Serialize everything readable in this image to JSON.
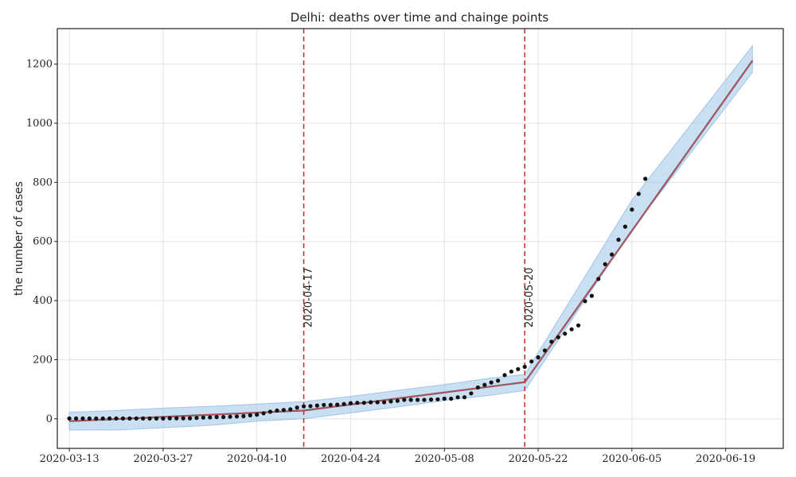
{
  "chart_data": {
    "type": "line",
    "title": "Delhi: deaths over time and chainge points",
    "xlabel": "",
    "ylabel": "the number of cases",
    "x_axis": {
      "type": "date",
      "range": [
        "2020-03-13",
        "2020-06-24"
      ],
      "tick_labels": [
        "2020-03-13",
        "2020-03-27",
        "2020-04-10",
        "2020-04-24",
        "2020-05-08",
        "2020-05-22",
        "2020-06-05",
        "2020-06-19"
      ]
    },
    "y_axis": {
      "range": [
        -100,
        1320
      ],
      "ticks": [
        0,
        200,
        400,
        600,
        800,
        1000,
        1200
      ]
    },
    "grid": true,
    "colors": {
      "observed": "#111111",
      "trend": "#c0504d",
      "forecast": "#2e5d8e",
      "band": "#9fc5e8",
      "changepoint": "#c0392b"
    },
    "changepoints": [
      {
        "date": "2020-04-17",
        "label": "2020-04-17"
      },
      {
        "date": "2020-05-20",
        "label": "2020-05-20"
      }
    ],
    "series": [
      {
        "kind": "observed",
        "points": [
          [
            "2020-03-13",
            1
          ],
          [
            "2020-03-14",
            1
          ],
          [
            "2020-03-15",
            1
          ],
          [
            "2020-03-16",
            1
          ],
          [
            "2020-03-17",
            1
          ],
          [
            "2020-03-18",
            1
          ],
          [
            "2020-03-19",
            1
          ],
          [
            "2020-03-20",
            1
          ],
          [
            "2020-03-21",
            1
          ],
          [
            "2020-03-22",
            1
          ],
          [
            "2020-03-23",
            1
          ],
          [
            "2020-03-24",
            1
          ],
          [
            "2020-03-25",
            1
          ],
          [
            "2020-03-26",
            1
          ],
          [
            "2020-03-27",
            1
          ],
          [
            "2020-03-28",
            2
          ],
          [
            "2020-03-29",
            2
          ],
          [
            "2020-03-30",
            2
          ],
          [
            "2020-03-31",
            2
          ],
          [
            "2020-04-01",
            3
          ],
          [
            "2020-04-02",
            4
          ],
          [
            "2020-04-03",
            5
          ],
          [
            "2020-04-04",
            6
          ],
          [
            "2020-04-05",
            6
          ],
          [
            "2020-04-06",
            7
          ],
          [
            "2020-04-07",
            8
          ],
          [
            "2020-04-08",
            9
          ],
          [
            "2020-04-09",
            12
          ],
          [
            "2020-04-10",
            14
          ],
          [
            "2020-04-11",
            19
          ],
          [
            "2020-04-12",
            24
          ],
          [
            "2020-04-13",
            28
          ],
          [
            "2020-04-14",
            30
          ],
          [
            "2020-04-15",
            32
          ],
          [
            "2020-04-16",
            38
          ],
          [
            "2020-04-17",
            42
          ],
          [
            "2020-04-18",
            43
          ],
          [
            "2020-04-19",
            45
          ],
          [
            "2020-04-20",
            47
          ],
          [
            "2020-04-21",
            47
          ],
          [
            "2020-04-22",
            48
          ],
          [
            "2020-04-23",
            50
          ],
          [
            "2020-04-24",
            53
          ],
          [
            "2020-04-25",
            54
          ],
          [
            "2020-04-26",
            54
          ],
          [
            "2020-04-27",
            56
          ],
          [
            "2020-04-28",
            56
          ],
          [
            "2020-04-29",
            56
          ],
          [
            "2020-04-30",
            59
          ],
          [
            "2020-05-01",
            61
          ],
          [
            "2020-05-02",
            64
          ],
          [
            "2020-05-03",
            64
          ],
          [
            "2020-05-04",
            64
          ],
          [
            "2020-05-05",
            64
          ],
          [
            "2020-05-06",
            65
          ],
          [
            "2020-05-07",
            66
          ],
          [
            "2020-05-08",
            68
          ],
          [
            "2020-05-09",
            68
          ],
          [
            "2020-05-10",
            73
          ],
          [
            "2020-05-11",
            73
          ],
          [
            "2020-05-12",
            86
          ],
          [
            "2020-05-13",
            106
          ],
          [
            "2020-05-14",
            115
          ],
          [
            "2020-05-15",
            123
          ],
          [
            "2020-05-16",
            129
          ],
          [
            "2020-05-17",
            148
          ],
          [
            "2020-05-18",
            160
          ],
          [
            "2020-05-19",
            168
          ],
          [
            "2020-05-20",
            176
          ],
          [
            "2020-05-21",
            194
          ],
          [
            "2020-05-22",
            208
          ],
          [
            "2020-05-23",
            231
          ],
          [
            "2020-05-24",
            261
          ],
          [
            "2020-05-25",
            276
          ],
          [
            "2020-05-26",
            288
          ],
          [
            "2020-05-27",
            303
          ],
          [
            "2020-05-28",
            316
          ],
          [
            "2020-05-29",
            398
          ],
          [
            "2020-05-30",
            416
          ],
          [
            "2020-05-31",
            473
          ],
          [
            "2020-06-01",
            523
          ],
          [
            "2020-06-02",
            556
          ],
          [
            "2020-06-03",
            606
          ],
          [
            "2020-06-04",
            650
          ],
          [
            "2020-06-05",
            708
          ],
          [
            "2020-06-06",
            761
          ],
          [
            "2020-06-07",
            812
          ]
        ]
      },
      {
        "kind": "trend",
        "points": [
          [
            "2020-03-13",
            -8
          ],
          [
            "2020-04-17",
            28
          ],
          [
            "2020-05-20",
            124
          ],
          [
            "2020-06-23",
            1212
          ]
        ]
      },
      {
        "kind": "band",
        "lower": [
          [
            "2020-03-13",
            -38
          ],
          [
            "2020-03-20",
            -38
          ],
          [
            "2020-03-27",
            -30
          ],
          [
            "2020-04-03",
            -22
          ],
          [
            "2020-04-10",
            -8
          ],
          [
            "2020-04-17",
            0
          ],
          [
            "2020-04-24",
            20
          ],
          [
            "2020-05-01",
            40
          ],
          [
            "2020-05-08",
            62
          ],
          [
            "2020-05-15",
            80
          ],
          [
            "2020-05-20",
            96
          ],
          [
            "2020-06-05",
            640
          ],
          [
            "2020-06-23",
            1172
          ]
        ],
        "upper": [
          [
            "2020-03-13",
            22
          ],
          [
            "2020-03-20",
            28
          ],
          [
            "2020-03-27",
            36
          ],
          [
            "2020-04-03",
            42
          ],
          [
            "2020-04-10",
            50
          ],
          [
            "2020-04-17",
            58
          ],
          [
            "2020-04-24",
            76
          ],
          [
            "2020-05-01",
            96
          ],
          [
            "2020-05-08",
            116
          ],
          [
            "2020-05-15",
            138
          ],
          [
            "2020-05-20",
            150
          ],
          [
            "2020-06-05",
            740
          ],
          [
            "2020-06-23",
            1262
          ]
        ]
      }
    ]
  }
}
